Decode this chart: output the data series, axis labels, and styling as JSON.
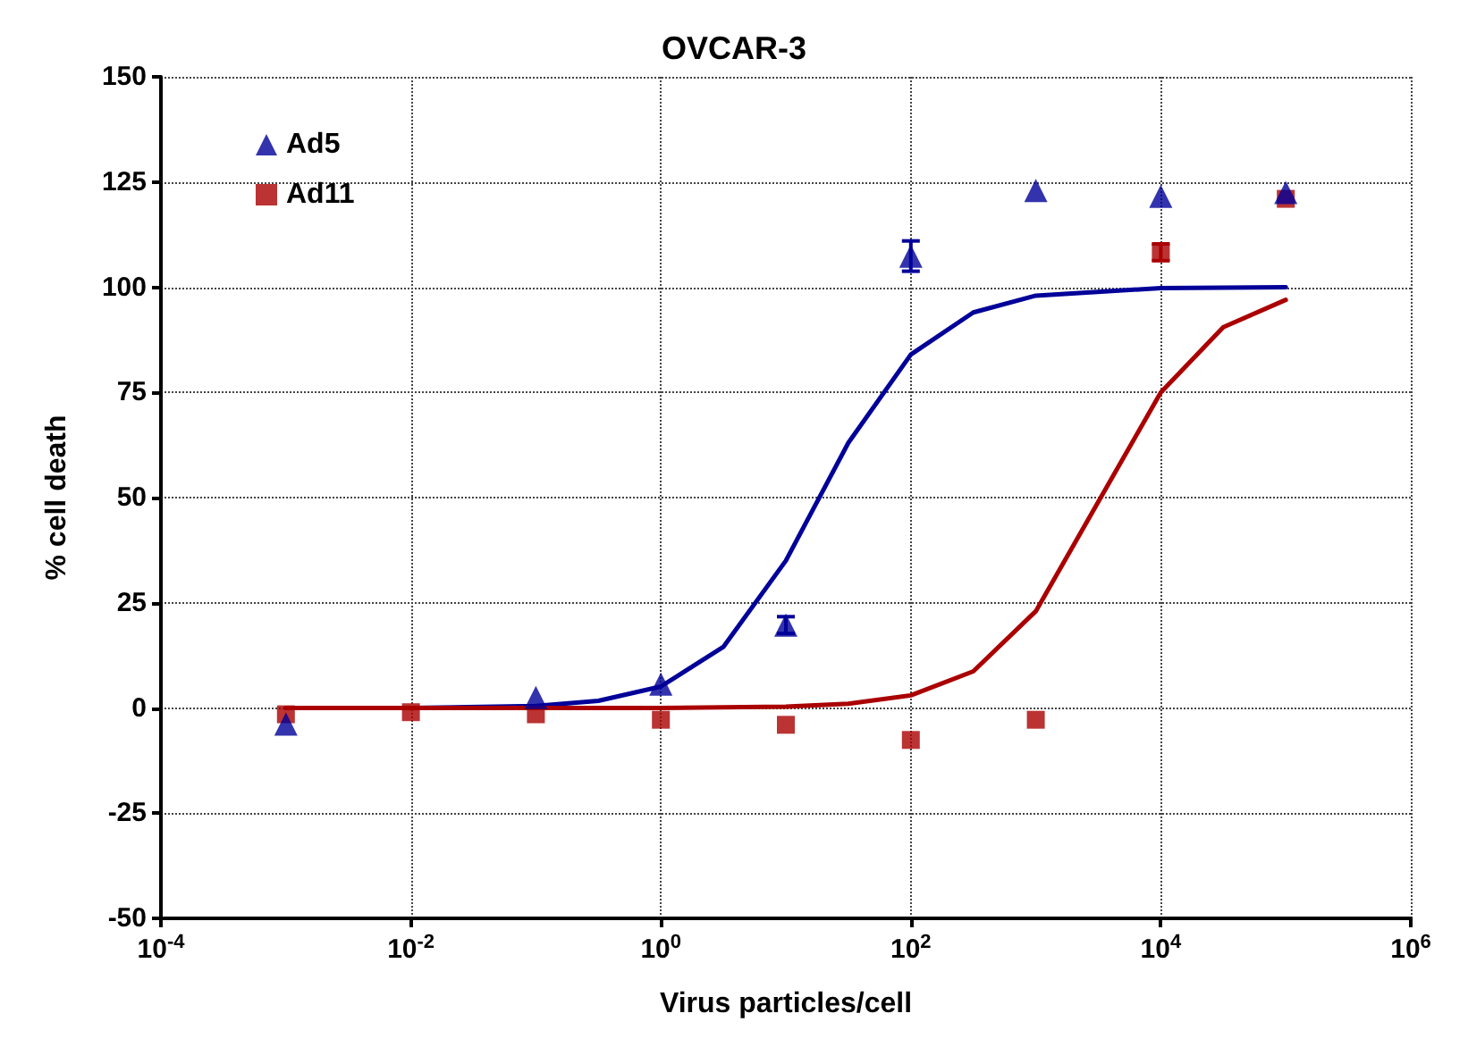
{
  "chart_data": {
    "type": "scatter",
    "title": "OVCAR-3",
    "xlabel": "Virus particles/cell",
    "ylabel": "% cell death",
    "log": "x",
    "xlim": [
      0.0001,
      1000000
    ],
    "xticks": [
      {
        "value": 0.0001,
        "label": "10$^{-4}$"
      },
      {
        "value": 0.01,
        "label": "10$^{-2}$"
      },
      {
        "value": 1,
        "label": "10$^{0}$"
      },
      {
        "value": 100,
        "label": "10$^{2}$"
      },
      {
        "value": 10000,
        "label": "10$^{4}$"
      },
      {
        "value": 1000000,
        "label": "10$^{6}$"
      }
    ],
    "ylim": [
      -50,
      150
    ],
    "yticks": [
      -50,
      -25,
      0,
      25,
      50,
      75,
      100,
      125,
      150
    ],
    "grid": true,
    "legend": "top left",
    "x": [
      0.001,
      0.01,
      0.1,
      1,
      10,
      100,
      1000,
      10000,
      100000
    ],
    "series": [
      {
        "name": "Ad5",
        "color": "#000099",
        "marker": "triangle",
        "values": [
          -3.8,
          null,
          2.5,
          5.7,
          19.7,
          107.4,
          123,
          121.6,
          122.5
        ],
        "errors": [
          null,
          null,
          null,
          null,
          2,
          3.6,
          null,
          null,
          null
        ]
      },
      {
        "name": "Ad11",
        "color": "#aa0000",
        "marker": "square",
        "values": [
          -1.5,
          -1,
          -1.5,
          -2.8,
          -4,
          -7.6,
          -2.8,
          108.3,
          121
        ],
        "errors": [
          null,
          null,
          null,
          null,
          null,
          null,
          null,
          2,
          null
        ]
      },
      {
        "type": "line",
        "color": "#000099",
        "marker": "none",
        "x": [
          0.001,
          0.01,
          0.1,
          0.316,
          1,
          3.16,
          10,
          31.6,
          100,
          316,
          1000,
          10000,
          100000
        ],
        "values": [
          0,
          0,
          0.5,
          1.7,
          5.1,
          14.5,
          35,
          63,
          84,
          94,
          98,
          99.8,
          100
        ]
      },
      {
        "type": "line",
        "color": "#aa0000",
        "marker": "none",
        "x": [
          0.001,
          0.01,
          0.1,
          1,
          10,
          31.6,
          100,
          316,
          1000,
          3160,
          10000,
          31600,
          100000
        ],
        "values": [
          0,
          0,
          0,
          0,
          0.3,
          1,
          3,
          8.7,
          23,
          49,
          75,
          90.5,
          97
        ]
      }
    ]
  }
}
